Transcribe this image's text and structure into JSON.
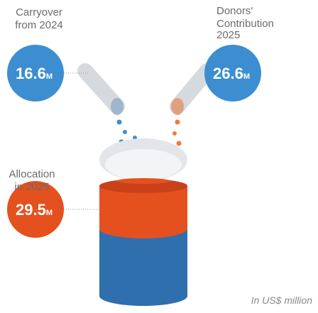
{
  "items": [
    {
      "label_lines": [
        "Carryover",
        "from 2024"
      ],
      "value": "16.6",
      "unit": "M"
    },
    {
      "label_lines": [
        "Donors'",
        "Contribution",
        "2025"
      ],
      "value": "26.6",
      "unit": "M"
    },
    {
      "label_lines": [
        "Allocation",
        "in 2025"
      ],
      "value": "29.5",
      "unit": "M"
    }
  ],
  "footnote": "In US$ million"
}
